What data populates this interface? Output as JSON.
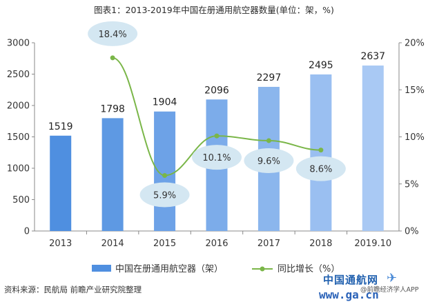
{
  "title": "图表1：2013-2019年中国在册通用航空器数量(单位：架，%)",
  "source": "资料来源：民航局 前瞻产业研究院整理",
  "watermark": {
    "logo_text": "中国通航网",
    "url_text": "www.ga.cn",
    "sub_text": "@前瞻经济学人APP",
    "plane_icon": "airplane-icon"
  },
  "colors": {
    "bar_dark": "#4f8fe0",
    "bar_light": "#a9c9f4",
    "line": "#7ab648",
    "label_bubble": "#d4e7f2",
    "axis": "#888888"
  },
  "chart_data": {
    "type": "bar",
    "categories": [
      "2013",
      "2014",
      "2015",
      "2016",
      "2017",
      "2018",
      "2019.10"
    ],
    "series": [
      {
        "name": "中国在册通用航空器（架）",
        "type": "bar",
        "axis": "left",
        "values": [
          1519,
          1798,
          1904,
          2096,
          2297,
          2495,
          2637
        ],
        "labels": [
          "1519",
          "1798",
          "1904",
          "2096",
          "2297",
          "2495",
          "2637"
        ]
      },
      {
        "name": "同比增长（%）",
        "type": "line",
        "axis": "right",
        "values": [
          null,
          18.4,
          5.9,
          10.1,
          9.6,
          8.6,
          null
        ],
        "labels": [
          "",
          "18.4%",
          "5.9%",
          "10.1%",
          "9.6%",
          "8.6%",
          ""
        ]
      }
    ],
    "y_left": {
      "min": 0,
      "max": 3000,
      "ticks": [
        "0",
        "500",
        "1000",
        "1500",
        "2000",
        "2500",
        "3000"
      ]
    },
    "y_right": {
      "min": 0,
      "max": 20,
      "ticks": [
        "0%",
        "5%",
        "10%",
        "15%",
        "20%"
      ]
    },
    "grid": false,
    "legend_position": "bottom"
  }
}
